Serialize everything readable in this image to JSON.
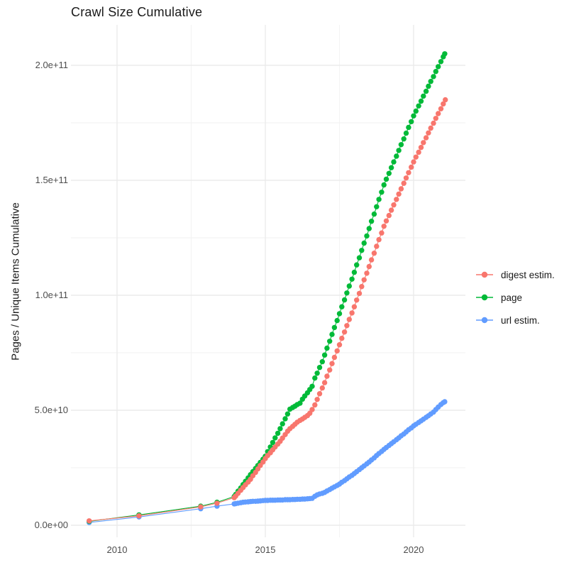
{
  "title": "Crawl Size Cumulative",
  "y_axis_title": "Pages / Unique Items Cumulative",
  "legend": {
    "items": [
      {
        "label": "digest estim.",
        "color": "#F8766D"
      },
      {
        "label": "page",
        "color": "#00BA38"
      },
      {
        "label": "url estim.",
        "color": "#619CFF"
      }
    ]
  },
  "colors": {
    "digest": "#F8766D",
    "page": "#00BA38",
    "url": "#619CFF",
    "grid_major": "#EBEBEB",
    "grid_minor": "#F2F2F2",
    "tick_text": "#4D4D4D",
    "title_text": "#1A1A1A",
    "background": "#FFFFFF"
  },
  "chart_data": {
    "type": "scatter",
    "title": "Crawl Size Cumulative",
    "xlabel": "",
    "ylabel": "Pages / Unique Items Cumulative",
    "grid": true,
    "legend_position": "right-center",
    "xlim": [
      2008.45,
      2021.75
    ],
    "ylim": [
      0,
      215000000000.0
    ],
    "x_ticks": {
      "major": [
        2010,
        2015,
        2020
      ],
      "minor": [
        2012.5,
        2017.5
      ],
      "labels": [
        "2010",
        "2015",
        "2020"
      ]
    },
    "y_ticks": {
      "major": [
        0,
        50000000000.0,
        100000000000.0,
        150000000000.0,
        200000000000.0
      ],
      "minor": [
        25000000000.0,
        75000000000.0,
        125000000000.0,
        175000000000.0
      ],
      "labels": [
        "0.0e+00",
        "5.0e+10",
        "1.0e+11",
        "1.5e+11",
        "2.0e+11"
      ]
    },
    "value_unit_note": "point values below are in billions (1e9) of pages / unique items, x = decimal year",
    "series": [
      {
        "name": "url estim.",
        "color": "#619CFF",
        "points": [
          [
            2009.06,
            1.2
          ],
          [
            2010.74,
            3.6
          ],
          [
            2012.82,
            7.2
          ],
          [
            2013.37,
            8.3
          ],
          [
            2013.95,
            9.3
          ],
          [
            2014.0,
            9.4
          ],
          [
            2014.08,
            9.6
          ],
          [
            2014.17,
            9.8
          ],
          [
            2014.25,
            10.0
          ],
          [
            2014.33,
            10.1
          ],
          [
            2014.42,
            10.2
          ],
          [
            2014.5,
            10.3
          ],
          [
            2014.58,
            10.4
          ],
          [
            2014.67,
            10.4
          ],
          [
            2014.75,
            10.5
          ],
          [
            2014.83,
            10.6
          ],
          [
            2014.92,
            10.7
          ],
          [
            2015.0,
            10.8
          ],
          [
            2015.08,
            10.8
          ],
          [
            2015.17,
            10.9
          ],
          [
            2015.25,
            10.9
          ],
          [
            2015.33,
            10.9
          ],
          [
            2015.42,
            11.0
          ],
          [
            2015.5,
            11.0
          ],
          [
            2015.58,
            11.0
          ],
          [
            2015.67,
            11.1
          ],
          [
            2015.75,
            11.1
          ],
          [
            2015.83,
            11.1
          ],
          [
            2015.92,
            11.2
          ],
          [
            2016.0,
            11.2
          ],
          [
            2016.08,
            11.3
          ],
          [
            2016.17,
            11.3
          ],
          [
            2016.25,
            11.4
          ],
          [
            2016.33,
            11.4
          ],
          [
            2016.42,
            11.5
          ],
          [
            2016.5,
            11.6
          ],
          [
            2016.58,
            11.7
          ],
          [
            2016.67,
            12.6
          ],
          [
            2016.75,
            13.2
          ],
          [
            2016.83,
            13.6
          ],
          [
            2016.92,
            13.9
          ],
          [
            2017.0,
            14.3
          ],
          [
            2017.08,
            14.9
          ],
          [
            2017.17,
            15.5
          ],
          [
            2017.25,
            16.1
          ],
          [
            2017.33,
            16.7
          ],
          [
            2017.42,
            17.3
          ],
          [
            2017.5,
            17.9
          ],
          [
            2017.58,
            18.7
          ],
          [
            2017.67,
            19.4
          ],
          [
            2017.75,
            20.2
          ],
          [
            2017.83,
            21.0
          ],
          [
            2017.92,
            21.7
          ],
          [
            2018.0,
            22.5
          ],
          [
            2018.08,
            23.3
          ],
          [
            2018.17,
            24.2
          ],
          [
            2018.25,
            25.0
          ],
          [
            2018.33,
            25.8
          ],
          [
            2018.42,
            26.7
          ],
          [
            2018.5,
            27.5
          ],
          [
            2018.58,
            28.4
          ],
          [
            2018.67,
            29.3
          ],
          [
            2018.75,
            30.3
          ],
          [
            2018.83,
            31.2
          ],
          [
            2018.92,
            32.1
          ],
          [
            2019.0,
            33.0
          ],
          [
            2019.08,
            33.8
          ],
          [
            2019.17,
            34.7
          ],
          [
            2019.25,
            35.5
          ],
          [
            2019.33,
            36.3
          ],
          [
            2019.42,
            37.2
          ],
          [
            2019.5,
            38.0
          ],
          [
            2019.58,
            38.9
          ],
          [
            2019.67,
            39.7
          ],
          [
            2019.75,
            40.6
          ],
          [
            2019.83,
            41.5
          ],
          [
            2019.92,
            42.3
          ],
          [
            2020.0,
            43.2
          ],
          [
            2020.08,
            43.9
          ],
          [
            2020.17,
            44.7
          ],
          [
            2020.25,
            45.4
          ],
          [
            2020.33,
            46.1
          ],
          [
            2020.42,
            46.9
          ],
          [
            2020.5,
            47.6
          ],
          [
            2020.58,
            48.4
          ],
          [
            2020.67,
            49.2
          ],
          [
            2020.75,
            50.3
          ],
          [
            2020.83,
            51.4
          ],
          [
            2020.92,
            52.5
          ],
          [
            2021.0,
            53.3
          ],
          [
            2021.05,
            53.7
          ]
        ]
      },
      {
        "name": "page",
        "color": "#00BA38",
        "points": [
          [
            2009.06,
            1.7
          ],
          [
            2010.74,
            4.5
          ],
          [
            2012.82,
            8.3
          ],
          [
            2013.37,
            10.0
          ],
          [
            2013.95,
            12.5
          ],
          [
            2014.0,
            13.4
          ],
          [
            2014.08,
            14.8
          ],
          [
            2014.17,
            16.2
          ],
          [
            2014.25,
            17.7
          ],
          [
            2014.33,
            19.1
          ],
          [
            2014.42,
            20.6
          ],
          [
            2014.5,
            22.0
          ],
          [
            2014.58,
            23.3
          ],
          [
            2014.67,
            24.7
          ],
          [
            2014.75,
            26.0
          ],
          [
            2014.83,
            27.3
          ],
          [
            2014.92,
            28.7
          ],
          [
            2015.0,
            30.0
          ],
          [
            2015.08,
            32.0
          ],
          [
            2015.17,
            34.0
          ],
          [
            2015.25,
            36.0
          ],
          [
            2015.33,
            38.0
          ],
          [
            2015.42,
            40.0
          ],
          [
            2015.5,
            42.0
          ],
          [
            2015.58,
            44.1
          ],
          [
            2015.67,
            46.3
          ],
          [
            2015.75,
            48.4
          ],
          [
            2015.83,
            50.5
          ],
          [
            2015.92,
            51.2
          ],
          [
            2016.0,
            51.8
          ],
          [
            2016.08,
            52.5
          ],
          [
            2016.17,
            53.1
          ],
          [
            2016.25,
            54.8
          ],
          [
            2016.33,
            56.2
          ],
          [
            2016.42,
            57.6
          ],
          [
            2016.5,
            59.0
          ],
          [
            2016.58,
            60.4
          ],
          [
            2016.67,
            64.0
          ],
          [
            2016.75,
            66.1
          ],
          [
            2016.83,
            68.6
          ],
          [
            2016.92,
            71.1
          ],
          [
            2017.0,
            74.0
          ],
          [
            2017.08,
            77.0
          ],
          [
            2017.17,
            80.0
          ],
          [
            2017.25,
            83.0
          ],
          [
            2017.33,
            86.0
          ],
          [
            2017.42,
            89.0
          ],
          [
            2017.5,
            92.0
          ],
          [
            2017.58,
            95.0
          ],
          [
            2017.67,
            98.0
          ],
          [
            2017.75,
            101.0
          ],
          [
            2017.83,
            104.0
          ],
          [
            2017.92,
            107.0
          ],
          [
            2018.0,
            110.0
          ],
          [
            2018.08,
            113.2
          ],
          [
            2018.17,
            116.3
          ],
          [
            2018.25,
            119.5
          ],
          [
            2018.33,
            122.7
          ],
          [
            2018.42,
            125.8
          ],
          [
            2018.5,
            129.0
          ],
          [
            2018.58,
            132.2
          ],
          [
            2018.67,
            135.3
          ],
          [
            2018.75,
            138.5
          ],
          [
            2018.83,
            141.7
          ],
          [
            2018.92,
            144.8
          ],
          [
            2019.0,
            148.0
          ],
          [
            2019.08,
            150.5
          ],
          [
            2019.17,
            153.0
          ],
          [
            2019.25,
            155.5
          ],
          [
            2019.33,
            158.0
          ],
          [
            2019.42,
            160.5
          ],
          [
            2019.5,
            163.0
          ],
          [
            2019.58,
            165.5
          ],
          [
            2019.67,
            168.0
          ],
          [
            2019.75,
            170.5
          ],
          [
            2019.83,
            173.0
          ],
          [
            2019.92,
            175.5
          ],
          [
            2020.0,
            178.0
          ],
          [
            2020.08,
            180.1
          ],
          [
            2020.17,
            182.3
          ],
          [
            2020.25,
            184.4
          ],
          [
            2020.33,
            186.6
          ],
          [
            2020.42,
            188.7
          ],
          [
            2020.5,
            190.9
          ],
          [
            2020.58,
            193.0
          ],
          [
            2020.67,
            195.1
          ],
          [
            2020.75,
            197.3
          ],
          [
            2020.83,
            199.4
          ],
          [
            2020.92,
            201.6
          ],
          [
            2021.0,
            203.7
          ],
          [
            2021.05,
            205.0
          ]
        ]
      },
      {
        "name": "digest estim.",
        "color": "#F8766D",
        "points": [
          [
            2009.06,
            1.9
          ],
          [
            2010.74,
            4.1
          ],
          [
            2012.82,
            8.0
          ],
          [
            2013.37,
            9.6
          ],
          [
            2013.95,
            12.0
          ],
          [
            2014.0,
            12.7
          ],
          [
            2014.08,
            13.9
          ],
          [
            2014.17,
            15.2
          ],
          [
            2014.25,
            16.4
          ],
          [
            2014.33,
            17.6
          ],
          [
            2014.42,
            18.8
          ],
          [
            2014.5,
            20.0
          ],
          [
            2014.58,
            21.5
          ],
          [
            2014.67,
            23.0
          ],
          [
            2014.75,
            24.5
          ],
          [
            2014.83,
            26.0
          ],
          [
            2014.92,
            27.5
          ],
          [
            2015.0,
            29.0
          ],
          [
            2015.08,
            30.3
          ],
          [
            2015.17,
            31.5
          ],
          [
            2015.25,
            32.8
          ],
          [
            2015.33,
            34.0
          ],
          [
            2015.42,
            35.3
          ],
          [
            2015.5,
            36.5
          ],
          [
            2015.58,
            37.9
          ],
          [
            2015.67,
            39.4
          ],
          [
            2015.75,
            40.9
          ],
          [
            2015.83,
            42.0
          ],
          [
            2015.92,
            43.0
          ],
          [
            2016.0,
            43.9
          ],
          [
            2016.08,
            44.8
          ],
          [
            2016.17,
            45.6
          ],
          [
            2016.25,
            46.2
          ],
          [
            2016.33,
            46.9
          ],
          [
            2016.42,
            47.7
          ],
          [
            2016.5,
            48.7
          ],
          [
            2016.58,
            50.3
          ],
          [
            2016.67,
            52.3
          ],
          [
            2016.75,
            54.7
          ],
          [
            2016.83,
            57.2
          ],
          [
            2016.92,
            59.7
          ],
          [
            2017.0,
            62.0
          ],
          [
            2017.08,
            64.8
          ],
          [
            2017.17,
            67.5
          ],
          [
            2017.25,
            70.3
          ],
          [
            2017.33,
            73.0
          ],
          [
            2017.42,
            75.8
          ],
          [
            2017.5,
            78.5
          ],
          [
            2017.58,
            81.3
          ],
          [
            2017.67,
            84.0
          ],
          [
            2017.75,
            86.8
          ],
          [
            2017.83,
            89.5
          ],
          [
            2017.92,
            92.3
          ],
          [
            2018.0,
            95.0
          ],
          [
            2018.08,
            97.9
          ],
          [
            2018.17,
            100.8
          ],
          [
            2018.25,
            103.8
          ],
          [
            2018.33,
            106.7
          ],
          [
            2018.42,
            109.6
          ],
          [
            2018.5,
            112.5
          ],
          [
            2018.58,
            115.4
          ],
          [
            2018.67,
            118.3
          ],
          [
            2018.75,
            121.3
          ],
          [
            2018.83,
            124.2
          ],
          [
            2018.92,
            127.1
          ],
          [
            2019.0,
            130.0
          ],
          [
            2019.08,
            132.3
          ],
          [
            2019.17,
            134.7
          ],
          [
            2019.25,
            137.0
          ],
          [
            2019.33,
            139.3
          ],
          [
            2019.42,
            141.7
          ],
          [
            2019.5,
            144.0
          ],
          [
            2019.58,
            146.3
          ],
          [
            2019.67,
            148.7
          ],
          [
            2019.75,
            151.0
          ],
          [
            2019.83,
            153.3
          ],
          [
            2019.92,
            155.7
          ],
          [
            2020.0,
            158.0
          ],
          [
            2020.08,
            160.1
          ],
          [
            2020.17,
            162.2
          ],
          [
            2020.25,
            164.3
          ],
          [
            2020.33,
            166.4
          ],
          [
            2020.42,
            168.5
          ],
          [
            2020.5,
            170.6
          ],
          [
            2020.58,
            172.7
          ],
          [
            2020.67,
            174.8
          ],
          [
            2020.75,
            176.9
          ],
          [
            2020.83,
            179.0
          ],
          [
            2020.92,
            181.1
          ],
          [
            2021.0,
            183.2
          ],
          [
            2021.07,
            185.0
          ]
        ]
      }
    ]
  }
}
